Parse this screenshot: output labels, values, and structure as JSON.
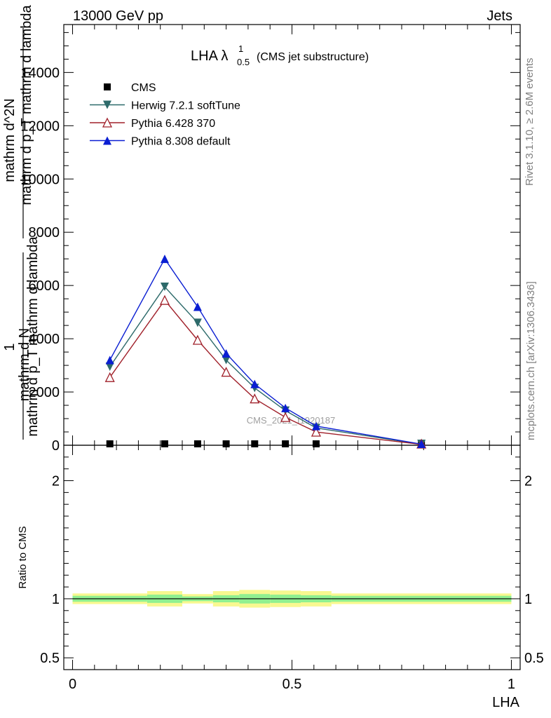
{
  "header": {
    "left": "13000 GeV pp",
    "right": "Jets"
  },
  "side_labels": {
    "rivet": "Rivet 3.1.10, ≥ 2.6M events",
    "mcplots": "mcplots.cern.ch [arXiv:1306.3436]"
  },
  "watermark": "CMS_2021_I1920187",
  "chart_data": [
    {
      "type": "line",
      "title_main": "LHA λ",
      "title_sup": "1",
      "title_sub": "0.5",
      "title_suffix": "(CMS jet substructure)",
      "ylabel": {
        "lead": "1",
        "frac_top": "mathrm d N",
        "frac_bottom": "mathrm d p_T mathrm d lambda",
        "second_top": "mathrm d^2N",
        "second_bottom": "mathrm d p_T mathrm d lambda"
      },
      "xlim": [
        -0.02,
        1.02
      ],
      "ylim": [
        0,
        15800
      ],
      "y_ticks": [
        0,
        2000,
        4000,
        6000,
        8000,
        10000,
        12000,
        14000
      ],
      "y_tick_labels": [
        "0",
        "2000",
        "4000",
        "6000",
        "8000",
        "10000",
        "12000",
        "14000"
      ],
      "legend_position": "top-left",
      "series": [
        {
          "name": "CMS",
          "color": "#000000",
          "marker": "square",
          "x": [
            0.085,
            0.21,
            0.285,
            0.35,
            0.415,
            0.485,
            0.555,
            0.795
          ],
          "y": [
            20,
            20,
            20,
            20,
            20,
            20,
            20,
            20
          ]
        },
        {
          "name": "Herwig 7.2.1 softTune",
          "color": "#2d6a6a",
          "marker": "triangle-down",
          "x": [
            0.085,
            0.21,
            0.285,
            0.35,
            0.415,
            0.485,
            0.555,
            0.795
          ],
          "y": [
            2950,
            5950,
            4600,
            3200,
            2150,
            1300,
            650,
            35
          ]
        },
        {
          "name": "Pythia 6.428 370",
          "color": "#a0202a",
          "marker": "triangle-up-open",
          "x": [
            0.085,
            0.21,
            0.285,
            0.35,
            0.415,
            0.485,
            0.555,
            0.795
          ],
          "y": [
            2550,
            5450,
            3950,
            2750,
            1750,
            1050,
            500,
            30
          ]
        },
        {
          "name": "Pythia 8.308 default",
          "color": "#0a1ed2",
          "marker": "triangle-up",
          "x": [
            0.085,
            0.21,
            0.285,
            0.35,
            0.415,
            0.485,
            0.555,
            0.795
          ],
          "y": [
            3200,
            7000,
            5200,
            3450,
            2300,
            1400,
            720,
            40
          ]
        }
      ]
    },
    {
      "type": "area",
      "ylabel": "Ratio to CMS",
      "xlabel": "LHA",
      "xlim": [
        -0.02,
        1.02
      ],
      "ylim": [
        0.4,
        2.3
      ],
      "y_tick_labels": [
        "0.5",
        "1",
        "2"
      ],
      "y_ticks": [
        0.5,
        1,
        2
      ],
      "x_ticks": [
        0,
        0.5,
        1
      ],
      "x_tick_labels": [
        "0",
        "0.5",
        "1"
      ],
      "bins": [
        {
          "lo": 0.0,
          "hi": 0.17,
          "inner": [
            0.975,
            1.025
          ],
          "outer": [
            0.955,
            1.045
          ]
        },
        {
          "lo": 0.17,
          "hi": 0.25,
          "inner": [
            0.965,
            1.035
          ],
          "outer": [
            0.935,
            1.065
          ]
        },
        {
          "lo": 0.25,
          "hi": 0.32,
          "inner": [
            0.98,
            1.02
          ],
          "outer": [
            0.96,
            1.04
          ]
        },
        {
          "lo": 0.32,
          "hi": 0.38,
          "inner": [
            0.97,
            1.03
          ],
          "outer": [
            0.935,
            1.065
          ]
        },
        {
          "lo": 0.38,
          "hi": 0.45,
          "inner": [
            0.96,
            1.04
          ],
          "outer": [
            0.925,
            1.075
          ]
        },
        {
          "lo": 0.45,
          "hi": 0.52,
          "inner": [
            0.965,
            1.035
          ],
          "outer": [
            0.93,
            1.07
          ]
        },
        {
          "lo": 0.52,
          "hi": 0.59,
          "inner": [
            0.97,
            1.03
          ],
          "outer": [
            0.935,
            1.065
          ]
        },
        {
          "lo": 0.59,
          "hi": 1.0,
          "inner": [
            0.975,
            1.025
          ],
          "outer": [
            0.955,
            1.045
          ]
        }
      ],
      "inner_color": "#90f090",
      "outer_color": "#f8f890"
    }
  ]
}
